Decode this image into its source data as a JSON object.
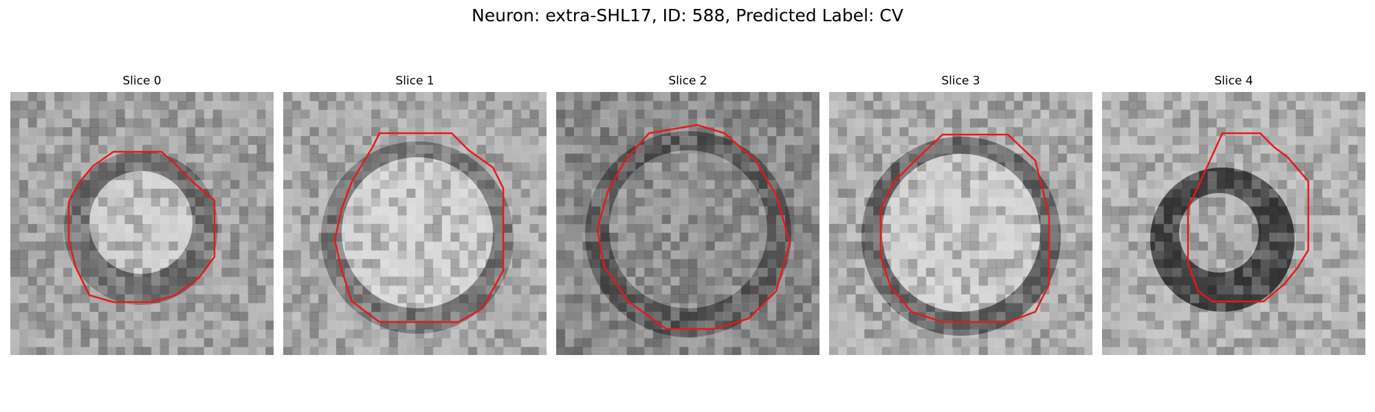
{
  "figure": {
    "title": "Neuron: extra-SHL17, ID: 588, Predicted Label: CV"
  },
  "contour_color": "#e8181a",
  "slices": [
    {
      "label": "Slice 0",
      "center_fill": "#d8d8d8",
      "ring_fill": "#6a6a6a",
      "background_fill": "#a8a8a8"
    },
    {
      "label": "Slice 1",
      "center_fill": "#dedede",
      "ring_fill": "#707070",
      "background_fill": "#b0b0b0"
    },
    {
      "label": "Slice 2",
      "center_fill": "#9a9a9a",
      "ring_fill": "#4e4e4e",
      "background_fill": "#8c8c8c"
    },
    {
      "label": "Slice 3",
      "center_fill": "#dcdcdc",
      "ring_fill": "#5a5a5a",
      "background_fill": "#b4b4b4"
    },
    {
      "label": "Slice 4",
      "center_fill": "#bdbdbd",
      "ring_fill": "#2e2e2e",
      "background_fill": "#b8b8b8"
    }
  ]
}
